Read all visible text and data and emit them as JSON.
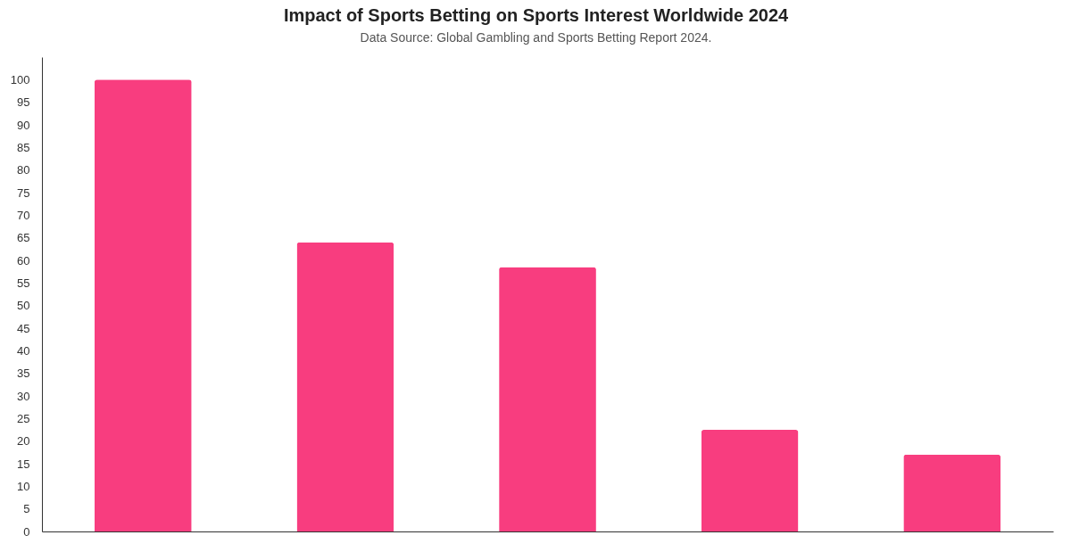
{
  "chart_data": {
    "type": "bar",
    "title": "Impact of Sports Betting on Sports Interest Worldwide 2024",
    "subtitle": "Data Source: Global Gambling and Sports Betting Report 2024.",
    "categories": [
      null,
      null,
      null,
      null,
      null
    ],
    "values": [
      100,
      64,
      58.5,
      22.5,
      17
    ],
    "color": "#f83d7f",
    "ylim": [
      0,
      105
    ],
    "yticks": [
      0,
      5,
      10,
      15,
      20,
      25,
      30,
      35,
      40,
      45,
      50,
      55,
      60,
      65,
      70,
      75,
      80,
      85,
      90,
      95,
      100
    ],
    "tick_labels": "y"
  }
}
